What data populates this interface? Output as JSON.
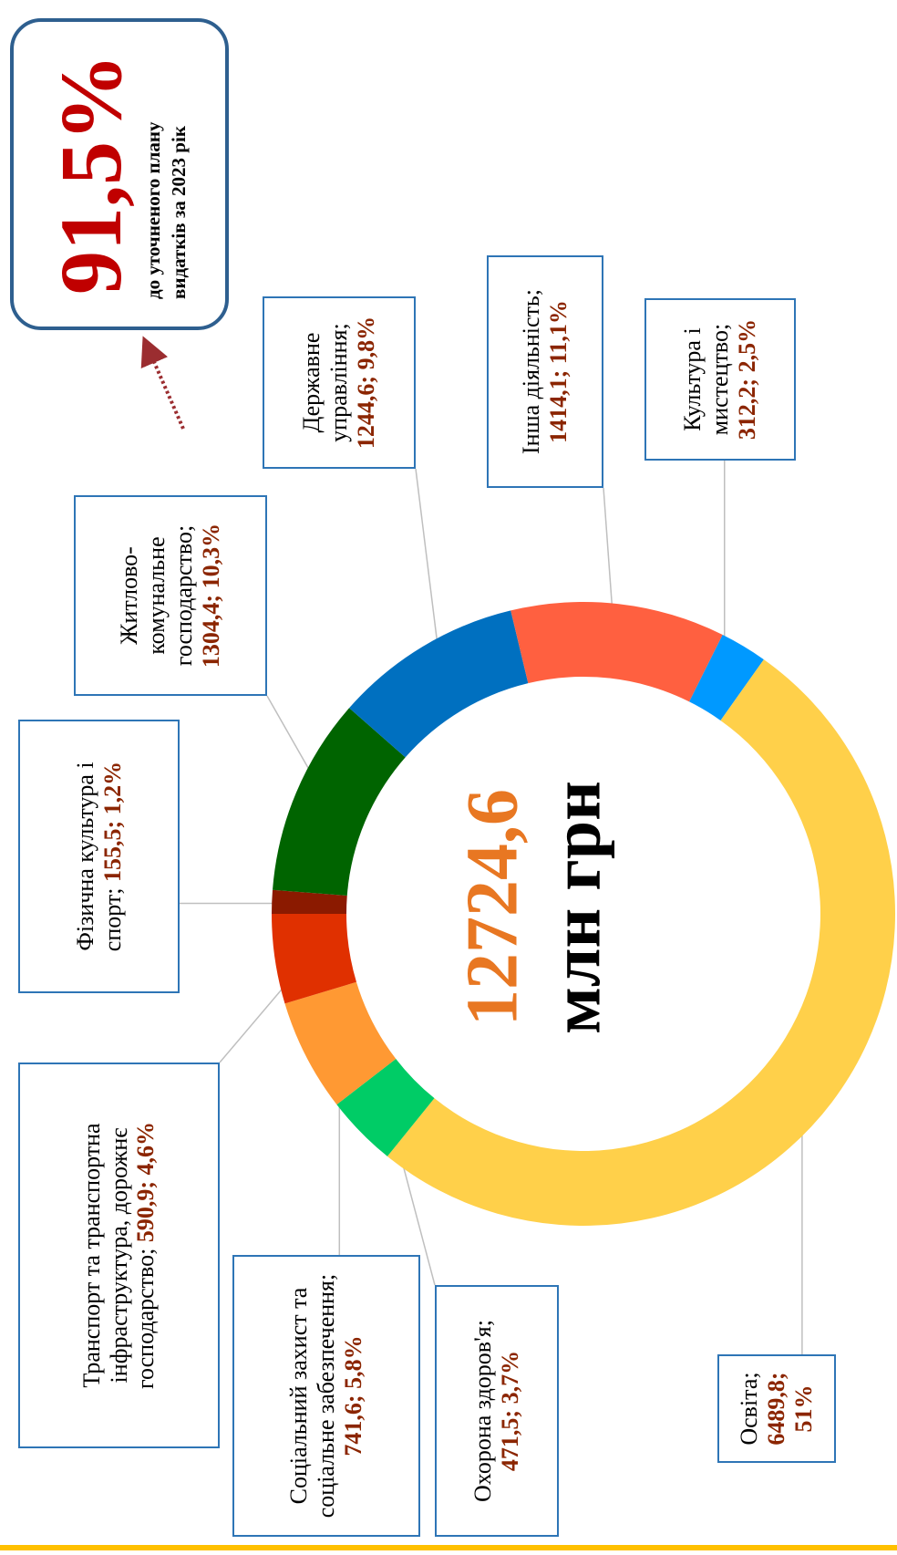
{
  "chart_data": {
    "type": "donut",
    "total": {
      "value": 12724.6,
      "label": "12724,6"
    },
    "total_unit": "млн грн",
    "callout": {
      "value": {
        "value": 91.5,
        "label": "91,5%"
      },
      "text": "до уточненого плану видатків за 2023 рік"
    },
    "categories": [
      "Фізична культура і спорт;",
      "Житлово-комунальне господарство;",
      "Державне управління;",
      "Інша діяльність;",
      "Культура і мистецтво;",
      "Освіта;",
      "Охорона здоров'я;",
      "Соціальний захист та соціальне забезпечення;",
      "Транспорт та транспортна інфраструктура, дорожнє господарство;"
    ],
    "values": [
      155.5,
      1304.4,
      1244.6,
      1414.1,
      312.2,
      6489.8,
      471.5,
      741.6,
      590.9
    ],
    "value_labels": [
      "155,5;",
      "1304,4;",
      "1244,6;",
      "1414,1;",
      "312,2;",
      "6489,8;",
      "471,5;",
      "741,6;",
      "590,9;"
    ],
    "percents": [
      1.2,
      10.3,
      9.8,
      11.1,
      2.5,
      51,
      3.7,
      5.8,
      4.6
    ],
    "percent_labels": [
      "1,2%",
      "10,3%",
      "9,8%",
      "11,1%",
      "2,5%",
      "51%",
      "3,7%",
      "5,8%",
      "4,6%"
    ],
    "colors": [
      "#8B1A00",
      "#006400",
      "#0070C0",
      "#FF6040",
      "#0099FF",
      "#FFD04A",
      "#00CC66",
      "#FF9933",
      "#E03000"
    ]
  }
}
